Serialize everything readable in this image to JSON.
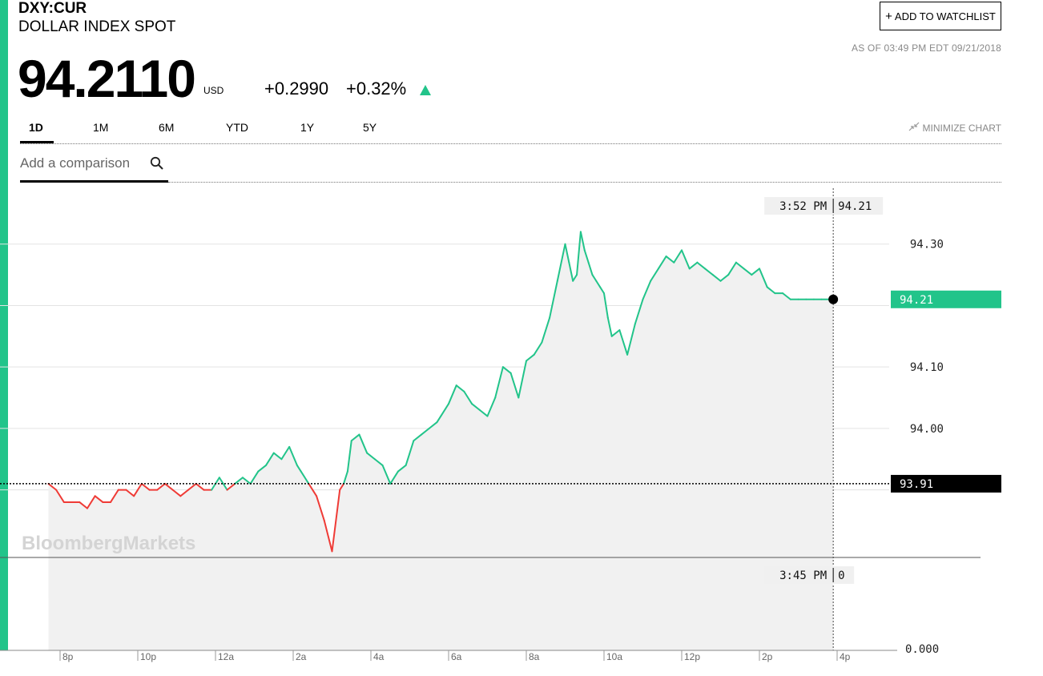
{
  "header": {
    "ticker": "DXY:CUR",
    "name": "DOLLAR INDEX SPOT",
    "price": "94.2110",
    "currency": "USD",
    "change_abs": "+0.2990",
    "change_pct": "+0.32%",
    "asof": "AS OF 03:49 PM EDT 09/21/2018",
    "watchlist_label": "ADD TO WATCHLIST",
    "minimize_label": "MINIMIZE CHART"
  },
  "tabs": [
    "1D",
    "1M",
    "6M",
    "YTD",
    "1Y",
    "5Y"
  ],
  "active_tab": "1D",
  "compare": {
    "placeholder": "Add a comparison"
  },
  "watermark": "BloombergMarkets",
  "colors": {
    "up": "#22c48a",
    "down": "#ef3b36",
    "accent": "#22c48a",
    "area": "#f1f1f1"
  },
  "icons": {
    "watchlist": "plus-icon",
    "search": "search-icon",
    "minimize": "minimize-arrows-icon"
  },
  "chart_data": {
    "type": "line",
    "y_ticks": [
      "94.30",
      "94.10",
      "94.00"
    ],
    "previous_close": "93.91",
    "current_label": "94.21",
    "crosshair": {
      "time": "3:52 PM",
      "value": "94.21"
    },
    "volume_panel": {
      "time": "3:45 PM",
      "value": "0",
      "axis_label": "0.000"
    },
    "x_ticks": [
      "8p",
      "10p",
      "12a",
      "2a",
      "4a",
      "6a",
      "8a",
      "10a",
      "12p",
      "2p",
      "4p"
    ],
    "x_hours": [
      20,
      22,
      24,
      26,
      28,
      30,
      32,
      34,
      36,
      38,
      40
    ],
    "ylim": [
      93.79,
      94.4
    ],
    "series": [
      {
        "x_hours": [
          19.7,
          19.9,
          20.1,
          20.3,
          20.5,
          20.7,
          20.9,
          21.1,
          21.3,
          21.5,
          21.7,
          21.9,
          22.1,
          22.3,
          22.5,
          22.7,
          22.9,
          23.1,
          23.3,
          23.5,
          23.7,
          23.9,
          24.1,
          24.3,
          24.5,
          24.7,
          24.9,
          25.1,
          25.3,
          25.5,
          25.7,
          25.9,
          26.1,
          26.2,
          26.4,
          26.6,
          26.8,
          27.0,
          27.2,
          27.3,
          27.4,
          27.5,
          27.7,
          27.9,
          28.1,
          28.3,
          28.5,
          28.7,
          28.9,
          29.1,
          29.3,
          29.5,
          29.7,
          29.8,
          30.0,
          30.2,
          30.4,
          30.6,
          30.8,
          31.0,
          31.2,
          31.4,
          31.6,
          31.8,
          32.0,
          32.2,
          32.4,
          32.6,
          32.8,
          33.0,
          33.1,
          33.2,
          33.3,
          33.4,
          33.5,
          33.6,
          33.7,
          33.8,
          33.9,
          34.0,
          34.1,
          34.2,
          34.4,
          34.6,
          34.8,
          35.0,
          35.2,
          35.4,
          35.6,
          35.8,
          36.0,
          36.2,
          36.4,
          36.6,
          36.8,
          37.0,
          37.2,
          37.4,
          37.6,
          37.8,
          38.0,
          38.2,
          38.4,
          38.6,
          38.8,
          39.0,
          39.2,
          39.4,
          39.6,
          39.8,
          39.9
        ],
        "values": [
          93.91,
          93.9,
          93.88,
          93.88,
          93.88,
          93.87,
          93.89,
          93.88,
          93.88,
          93.9,
          93.9,
          93.89,
          93.91,
          93.9,
          93.9,
          93.91,
          93.9,
          93.89,
          93.9,
          93.91,
          93.9,
          93.9,
          93.92,
          93.9,
          93.91,
          93.92,
          93.91,
          93.93,
          93.94,
          93.96,
          93.95,
          93.97,
          93.94,
          93.93,
          93.91,
          93.89,
          93.85,
          93.8,
          93.9,
          93.91,
          93.93,
          93.98,
          93.99,
          93.96,
          93.95,
          93.94,
          93.91,
          93.93,
          93.94,
          93.98,
          93.99,
          94.0,
          94.01,
          94.02,
          94.04,
          94.07,
          94.06,
          94.04,
          94.03,
          94.02,
          94.05,
          94.1,
          94.09,
          94.05,
          94.11,
          94.12,
          94.14,
          94.18,
          94.24,
          94.3,
          94.27,
          94.24,
          94.25,
          94.32,
          94.29,
          94.27,
          94.25,
          94.24,
          94.23,
          94.22,
          94.18,
          94.15,
          94.16,
          94.12,
          94.17,
          94.21,
          94.24,
          94.26,
          94.28,
          94.27,
          94.29,
          94.26,
          94.27,
          94.26,
          94.25,
          94.24,
          94.25,
          94.27,
          94.26,
          94.25,
          94.26,
          94.23,
          94.22,
          94.22,
          94.21,
          94.21,
          94.21,
          94.21,
          94.21,
          94.21,
          94.21
        ]
      }
    ]
  }
}
